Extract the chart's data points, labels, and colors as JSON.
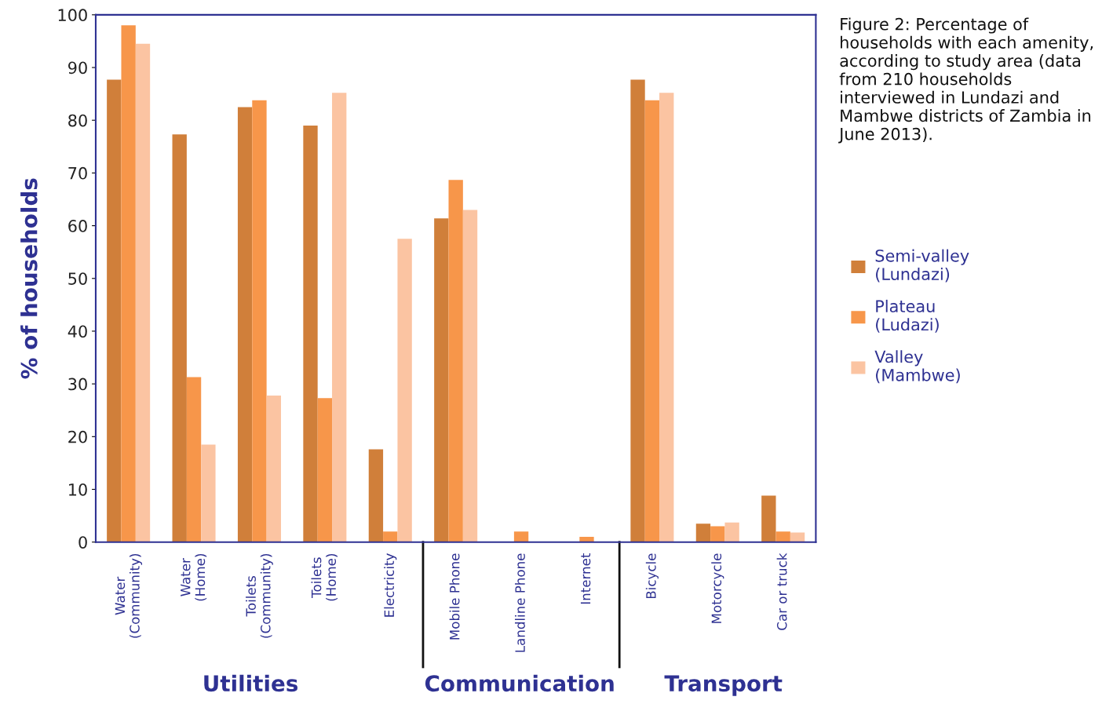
{
  "chart_data": {
    "type": "bar",
    "ylabel": "% of households",
    "categories": [
      "Water\n(Community)",
      "Water\n(Home)",
      "Toilets\n(Community)",
      "Toilets\n(Home)",
      "Electricity",
      "Mobile Phone",
      "Landline Phone",
      "Internet",
      "Bicycle",
      "Motorcycle",
      "Car or truck"
    ],
    "series": [
      {
        "name": "Semi-valley\n(Lundazi)",
        "color": "#d07f3a",
        "values": [
          87.7,
          77.3,
          82.5,
          79,
          17.6,
          61.4,
          0,
          0,
          87.7,
          3.5,
          8.8
        ]
      },
      {
        "name": "Plateau\n(Ludazi)",
        "color": "#f7964a",
        "values": [
          98,
          31.3,
          83.8,
          27.3,
          2,
          68.7,
          2,
          1,
          83.8,
          3,
          2
        ]
      },
      {
        "name": "Valley\n(Mambwe)",
        "color": "#fbc4a2",
        "values": [
          94.5,
          18.5,
          27.8,
          85.2,
          57.5,
          63,
          0,
          0,
          85.2,
          3.7,
          1.8
        ]
      }
    ],
    "ylim": [
      0,
      100
    ],
    "yticks": [
      0,
      10,
      20,
      30,
      40,
      50,
      60,
      70,
      80,
      90,
      100
    ],
    "grid": false,
    "legend": "right",
    "annotations": [
      "Utilities",
      "Communication",
      "Transport",
      "Figure 2: Percentage of households with each amenity, according to study area (data from 210 households interviewed in Lundazi and Mambwe districts of Zambia in June 2013)."
    ]
  }
}
